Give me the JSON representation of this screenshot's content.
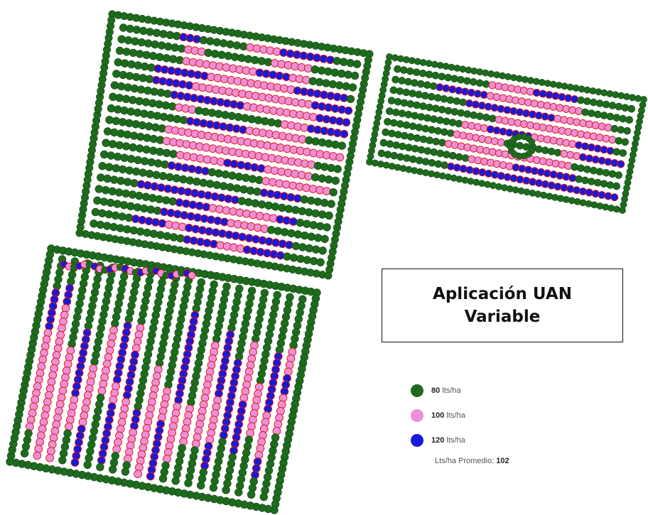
{
  "map": {
    "title_line1": "Aplicación UAN",
    "title_line2": "Variable",
    "legend": [
      {
        "rate": "80",
        "unit": "lts/ha",
        "color": "#1e6b1e",
        "icon": "green-dot-icon"
      },
      {
        "rate": "100",
        "unit": "lts/ha",
        "color": "#ee8fd8",
        "icon": "pink-dot-icon"
      },
      {
        "rate": "120",
        "unit": "lts/ha",
        "color": "#1a1ad6",
        "icon": "blue-dot-icon"
      }
    ],
    "average_label": "Lts/ha Promedio:",
    "average_value": "102"
  }
}
